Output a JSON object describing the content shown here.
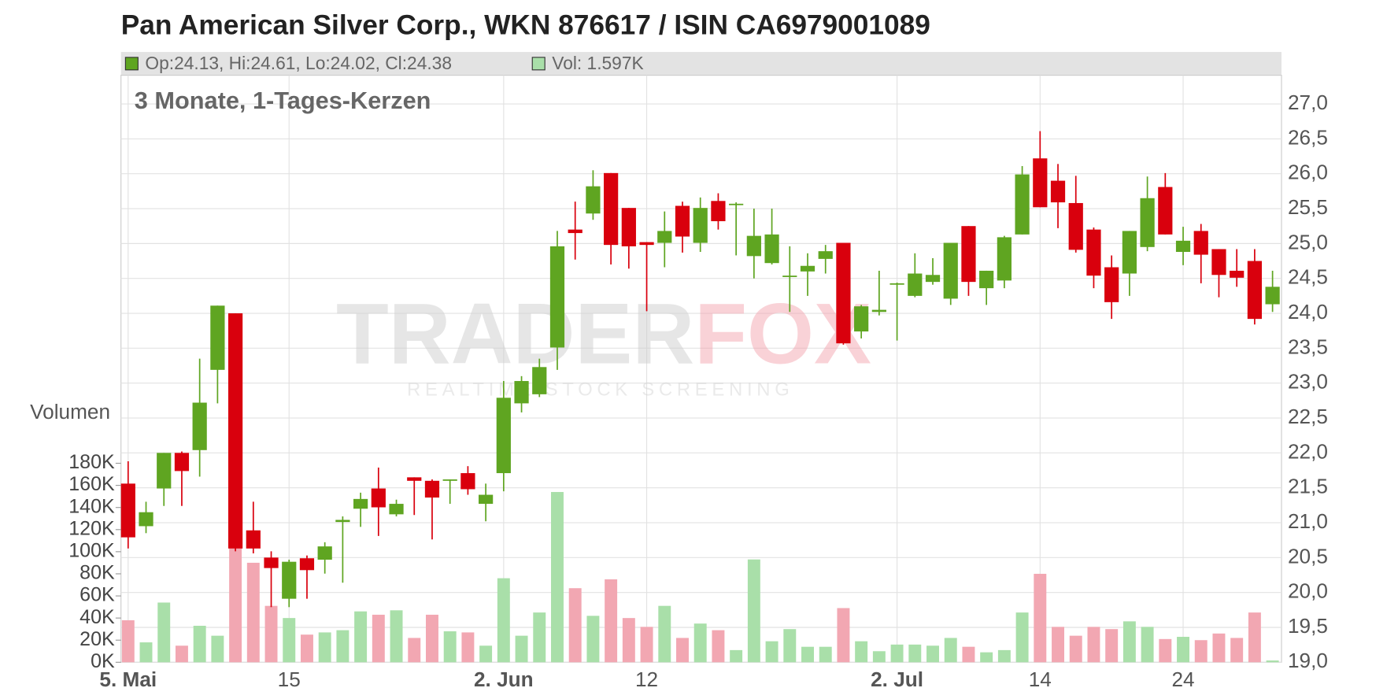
{
  "chart_data": {
    "type": "candlestick",
    "title": "Pan American Silver Corp., WKN 876617 / ISIN CA6979001089",
    "subtitle": "3 Monate, 1-Tages-Kerzen",
    "legend": [
      "Op:24.13, Hi:24.61, Lo:24.02, Cl:24.38",
      "Vol: 1.597K"
    ],
    "y2_label": "Volumen",
    "watermark": [
      "TRADER",
      "FOX"
    ],
    "watermark_tagline": "REALTIME STOCK SCREENING",
    "categories": [
      "5. Mai",
      null,
      null,
      null,
      null,
      null,
      null,
      null,
      null,
      "15",
      null,
      null,
      null,
      null,
      null,
      null,
      null,
      null,
      null,
      null,
      null,
      "2. Jun",
      null,
      null,
      null,
      null,
      null,
      null,
      null,
      "12",
      null,
      null,
      null,
      null,
      null,
      null,
      null,
      null,
      null,
      null,
      null,
      null,
      null,
      "2. Jul",
      null,
      null,
      null,
      null,
      null,
      null,
      null,
      "14",
      null,
      null,
      null,
      null,
      null,
      null,
      null,
      "24",
      null,
      null,
      null,
      null,
      null
    ],
    "open": [
      21.56,
      20.95,
      21.49,
      22.0,
      22.04,
      23.19,
      24.0,
      20.89,
      20.5,
      19.91,
      20.49,
      20.47,
      21.01,
      21.2,
      21.49,
      21.12,
      21.65,
      21.6,
      21.6,
      21.71,
      21.27,
      21.71,
      22.71,
      22.84,
      23.51,
      25.2,
      25.43,
      26.01,
      25.51,
      25.02,
      25.01,
      25.54,
      25.01,
      25.61,
      25.55,
      24.82,
      24.72,
      24.52,
      24.6,
      24.78,
      25.01,
      23.74,
      24.02,
      24.41,
      24.25,
      24.45,
      24.21,
      25.25,
      24.36,
      24.47,
      25.13,
      26.22,
      25.9,
      25.58,
      25.2,
      24.66,
      24.57,
      24.95,
      25.81,
      24.88,
      25.18,
      24.92,
      24.61,
      24.75,
      24.13
    ],
    "high": [
      21.88,
      21.3,
      22.0,
      22.02,
      23.35,
      24.11,
      24.0,
      21.3,
      20.59,
      20.47,
      20.53,
      20.72,
      21.09,
      21.43,
      21.79,
      21.33,
      21.65,
      21.62,
      21.62,
      21.81,
      21.56,
      23.03,
      23.1,
      23.35,
      25.18,
      25.6,
      26.05,
      26.01,
      25.51,
      25.02,
      25.46,
      25.6,
      25.66,
      25.72,
      25.59,
      25.5,
      25.5,
      24.96,
      24.86,
      24.98,
      25.01,
      24.12,
      24.61,
      24.44,
      24.86,
      24.79,
      25.01,
      25.25,
      24.61,
      25.11,
      26.11,
      26.61,
      26.14,
      25.97,
      25.23,
      24.83,
      25.18,
      25.96,
      26.01,
      25.24,
      25.28,
      24.92,
      24.92,
      24.92,
      24.61
    ],
    "low": [
      20.63,
      20.85,
      21.24,
      21.24,
      21.66,
      22.71,
      20.59,
      20.56,
      19.79,
      19.79,
      19.91,
      20.27,
      20.14,
      20.94,
      20.81,
      21.09,
      21.11,
      20.76,
      21.27,
      21.4,
      21.02,
      21.45,
      22.58,
      22.8,
      23.19,
      24.77,
      25.34,
      24.7,
      24.64,
      24.03,
      24.66,
      24.87,
      24.88,
      25.2,
      24.83,
      24.5,
      24.7,
      24.02,
      24.25,
      24.57,
      23.55,
      23.64,
      23.97,
      23.61,
      24.23,
      24.41,
      24.12,
      24.25,
      24.12,
      24.36,
      25.13,
      25.52,
      25.22,
      24.87,
      24.36,
      23.92,
      24.25,
      24.89,
      25.13,
      24.69,
      24.43,
      24.23,
      24.38,
      23.84,
      24.02
    ],
    "close": [
      20.79,
      21.15,
      22.0,
      21.74,
      22.72,
      24.11,
      20.63,
      20.63,
      20.35,
      20.44,
      20.32,
      20.66,
      21.04,
      21.34,
      21.22,
      21.27,
      21.6,
      21.36,
      21.62,
      21.48,
      21.4,
      22.79,
      23.03,
      23.23,
      24.96,
      25.15,
      25.82,
      24.98,
      24.96,
      24.98,
      25.18,
      25.1,
      25.51,
      25.32,
      25.57,
      25.11,
      25.13,
      24.54,
      24.68,
      24.89,
      23.57,
      24.1,
      24.05,
      24.43,
      24.57,
      24.55,
      25.01,
      24.45,
      24.61,
      25.09,
      25.99,
      25.52,
      25.59,
      24.91,
      24.54,
      24.16,
      25.18,
      25.65,
      25.13,
      25.04,
      24.84,
      24.55,
      24.51,
      23.92,
      24.38
    ],
    "volume": [
      38,
      18,
      54,
      15,
      33,
      24,
      103,
      90,
      51,
      40,
      25,
      27,
      29,
      46,
      43,
      47,
      22,
      43,
      28,
      27,
      15,
      76,
      24,
      45,
      154,
      67,
      42,
      75,
      40,
      32,
      51,
      22,
      35,
      29,
      11,
      93,
      19,
      30,
      14,
      14,
      49,
      19,
      10,
      16,
      16,
      15,
      22,
      14,
      9,
      11,
      45,
      80,
      32,
      24,
      32,
      30,
      37,
      32,
      21,
      23,
      20,
      26,
      22,
      45,
      1.597
    ],
    "ylim": [
      19.0,
      27.0
    ],
    "yticks": [
      {
        "value": 19.0,
        "label": "19,0"
      },
      {
        "value": 19.5,
        "label": "19,5"
      },
      {
        "value": 20.0,
        "label": "20,0"
      },
      {
        "value": 20.5,
        "label": "20,5"
      },
      {
        "value": 21.0,
        "label": "21,0"
      },
      {
        "value": 21.5,
        "label": "21,5"
      },
      {
        "value": 22.0,
        "label": "22,0"
      },
      {
        "value": 22.5,
        "label": "22,5"
      },
      {
        "value": 23.0,
        "label": "23,0"
      },
      {
        "value": 23.5,
        "label": "23,5"
      },
      {
        "value": 24.0,
        "label": "24,0"
      },
      {
        "value": 24.5,
        "label": "24,5"
      },
      {
        "value": 25.0,
        "label": "25,0"
      },
      {
        "value": 25.5,
        "label": "25,5"
      },
      {
        "value": 26.0,
        "label": "26,0"
      },
      {
        "value": 26.5,
        "label": "26,5"
      },
      {
        "value": 27.0,
        "label": "27,0"
      }
    ],
    "y2lim": [
      0,
      505
    ],
    "y2ticks": [
      {
        "value": 0,
        "label": "0K"
      },
      {
        "value": 20,
        "label": "20K"
      },
      {
        "value": 40,
        "label": "40K"
      },
      {
        "value": 60,
        "label": "60K"
      },
      {
        "value": 80,
        "label": "80K"
      },
      {
        "value": 100,
        "label": "100K"
      },
      {
        "value": 120,
        "label": "120K"
      },
      {
        "value": 140,
        "label": "140K"
      },
      {
        "value": 160,
        "label": "160K"
      },
      {
        "value": 180,
        "label": "180K"
      }
    ],
    "grid": true,
    "up_color": "#5fa521",
    "down_color": "#d9000d",
    "volume_up_color": "#a9dfa9",
    "volume_down_color": "#f2a7b2"
  }
}
